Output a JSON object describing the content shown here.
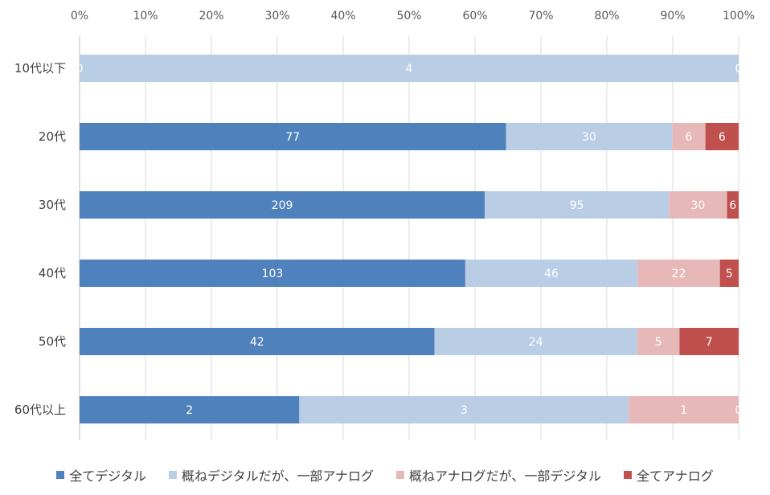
{
  "chart_data": {
    "type": "bar",
    "orientation": "horizontal",
    "stacked": "percent",
    "categories": [
      "10代以下",
      "20代",
      "30代",
      "40代",
      "50代",
      "60代以上"
    ],
    "series": [
      {
        "name": "全てデジタル",
        "color": "#4f81bd",
        "values": [
          0,
          77,
          209,
          103,
          42,
          2
        ]
      },
      {
        "name": "概ねデジタルだが、一部アナログ",
        "color": "#b9cde5",
        "values": [
          4,
          30,
          95,
          46,
          24,
          3
        ]
      },
      {
        "name": "概ねアナログだが、一部デジタル",
        "color": "#e6b9b8",
        "values": [
          0,
          6,
          30,
          22,
          5,
          1
        ]
      },
      {
        "name": "全てアナログ",
        "color": "#c0504d",
        "values": [
          0,
          6,
          6,
          5,
          7,
          0
        ]
      }
    ],
    "x_ticks": [
      "0%",
      "10%",
      "20%",
      "30%",
      "40%",
      "50%",
      "60%",
      "70%",
      "80%",
      "90%",
      "100%"
    ],
    "xlim": [
      0,
      100
    ],
    "grid": true,
    "legend_position": "bottom"
  }
}
